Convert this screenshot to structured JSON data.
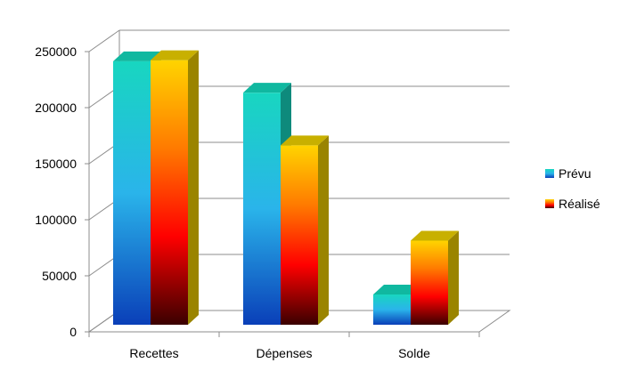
{
  "chart_data": {
    "type": "bar",
    "style": "3d-clustered-column",
    "categories": [
      "Recettes",
      "Dépenses",
      "Solde"
    ],
    "series": [
      {
        "name": "Prévu",
        "values": [
          235000,
          207000,
          27000
        ],
        "gradient": [
          "#18d6c0",
          "#2ab4ea",
          "#0a3fb8"
        ],
        "side": "#0e8a7c",
        "top": "#10b8a0"
      },
      {
        "name": "Réalisé",
        "values": [
          236000,
          160000,
          75000
        ],
        "gradient": [
          "#ffd400",
          "#ff7a00",
          "#ff0000",
          "#3a0000"
        ],
        "side": "#9a8400",
        "top": "#c8b000"
      }
    ],
    "y_ticks": [
      "0",
      "50000",
      "100000",
      "150000",
      "200000",
      "250000"
    ],
    "ylim": [
      0,
      250000
    ],
    "grid": true,
    "legend_position": "right"
  }
}
